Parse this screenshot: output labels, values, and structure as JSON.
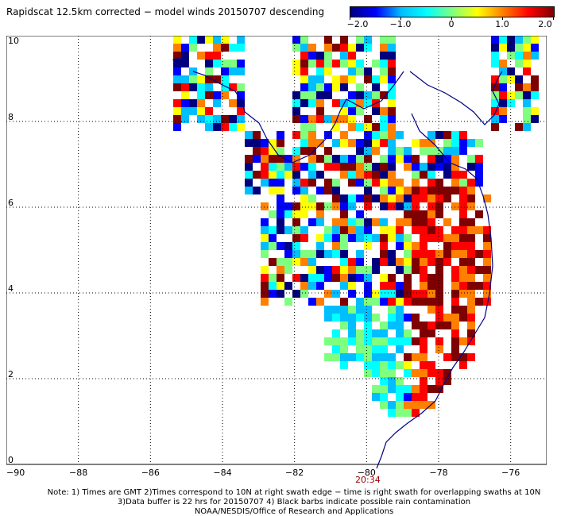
{
  "title": "Rapidscat 12.5km corrected − model winds 20150707 descending",
  "colorbar": {
    "labels": [
      "−2.0",
      "−1.0",
      "0",
      "1.0",
      "2.0"
    ],
    "values": [
      -2.0,
      -1.0,
      0,
      1.0,
      2.0
    ],
    "range": [
      -2.0,
      2.0
    ],
    "colors": [
      "#00007f",
      "#0000ff",
      "#00bfff",
      "#00ffff",
      "#7fff7f",
      "#ffff00",
      "#ff7f00",
      "#ff0000",
      "#7f0000"
    ]
  },
  "map": {
    "x_ticks": [
      "−90",
      "−88",
      "−86",
      "−84",
      "−82",
      "−80",
      "−78",
      "−76"
    ],
    "y_ticks": [
      "0",
      "2",
      "4",
      "6",
      "8",
      "10"
    ],
    "lon_range": [
      -90,
      -75
    ],
    "lat_range": [
      0,
      10
    ],
    "grid": true,
    "coastline_color": "#00008b"
  },
  "time_label": "20:34",
  "notes": [
    "Note: 1) Times are GMT 2)Times correspond to 10N at right swath edge − time is right swath for overlapping swaths at 10N",
    "3)Data buffer is 22 hrs for 20150707 4) Black barbs indicate possible rain contamination",
    "NOAA/NESDIS/Office of Research and Applications"
  ]
}
